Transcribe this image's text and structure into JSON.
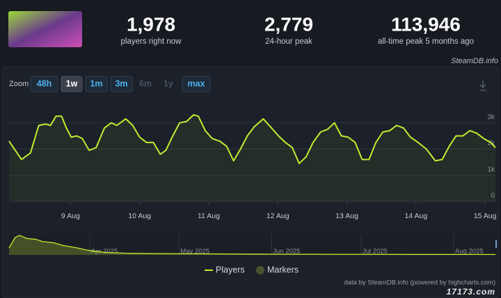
{
  "stats": [
    {
      "value": "1,978",
      "label": "players right now"
    },
    {
      "value": "2,779",
      "label": "24-hour peak"
    },
    {
      "value": "113,946",
      "label": "all-time peak 5 months ago"
    }
  ],
  "brand": "SteamDB.info",
  "zoom": {
    "label": "Zoom",
    "options": [
      "48h",
      "1w",
      "1m",
      "3m",
      "6m",
      "1y",
      "max"
    ],
    "selected": "1w",
    "disabled": [
      "6m",
      "1y"
    ]
  },
  "credit": "data by SteamDB.info (powered by highcharts.com)",
  "watermark": "17173.com",
  "chart_data": [
    {
      "type": "line",
      "x": [
        8.11,
        8.29,
        8.42,
        8.54,
        8.64,
        8.71,
        8.79,
        8.87,
        8.94,
        9.01,
        9.09,
        9.17,
        9.27,
        9.37,
        9.49,
        9.59,
        9.67,
        9.8,
        9.9,
        10.0,
        10.1,
        10.2,
        10.3,
        10.38,
        10.48,
        10.58,
        10.68,
        10.78,
        10.85,
        10.95,
        11.05,
        11.16,
        11.26,
        11.36,
        11.46,
        11.56,
        11.66,
        11.79,
        11.91,
        12.01,
        12.11,
        12.21,
        12.31,
        12.41,
        12.51,
        12.62,
        12.72,
        12.82,
        12.92,
        13.02,
        13.12,
        13.22,
        13.32,
        13.42,
        13.52,
        13.62,
        13.72,
        13.82,
        13.92,
        14.03,
        14.15,
        14.28,
        14.38,
        14.48,
        14.58,
        14.68,
        14.78,
        14.88,
        14.98,
        15.08,
        15.15
      ],
      "series": [
        {
          "name": "Players",
          "color": "#c3ec2e",
          "values": [
            2300,
            1600,
            1850,
            2900,
            2950,
            2900,
            3250,
            3250,
            2800,
            2450,
            2500,
            2400,
            1950,
            2050,
            2800,
            3000,
            2900,
            3150,
            2900,
            2450,
            2250,
            2250,
            1800,
            1950,
            2500,
            3000,
            3050,
            3300,
            3250,
            2700,
            2400,
            2300,
            2100,
            1550,
            2000,
            2500,
            2850,
            3150,
            2800,
            2500,
            2250,
            2050,
            1450,
            1700,
            2250,
            2650,
            2750,
            3000,
            2500,
            2450,
            2250,
            1600,
            1600,
            2250,
            2650,
            2700,
            2900,
            2800,
            2450,
            2250,
            2000,
            1550,
            1600,
            2100,
            2500,
            2500,
            2700,
            2600,
            2400,
            2250,
            2050
          ]
        }
      ],
      "marker_legend": "Markers",
      "xlim": [
        8.11,
        15.15
      ],
      "xticks": [
        {
          "value": 9,
          "label": "9 Aug"
        },
        {
          "value": 10,
          "label": "10 Aug"
        },
        {
          "value": 11,
          "label": "11 Aug"
        },
        {
          "value": 12,
          "label": "12 Aug"
        },
        {
          "value": 13,
          "label": "13 Aug"
        },
        {
          "value": 14,
          "label": "14 Aug"
        },
        {
          "value": 15,
          "label": "15 Aug"
        }
      ],
      "ylim": [
        0,
        4000
      ],
      "yticks": [
        0,
        {
          "value": 1000,
          "label": "1k"
        },
        {
          "value": 2000,
          "label": "2k"
        },
        {
          "value": 3000,
          "label": "3k"
        }
      ],
      "grid": true
    },
    {
      "type": "area",
      "color": "#c3ec2e",
      "x": [
        64,
        66,
        67.5,
        70,
        73,
        75,
        79,
        82,
        87,
        90,
        96,
        103,
        112,
        131,
        154,
        177,
        201,
        227
      ],
      "values": [
        40000,
        100000,
        113000,
        95000,
        90000,
        78000,
        70000,
        55000,
        40000,
        28000,
        15000,
        10000,
        8000,
        6000,
        4000,
        3500,
        3000,
        2500
      ],
      "xlim": [
        64,
        227
      ],
      "ylim": [
        0,
        120000
      ],
      "xticks": [
        {
          "value": 91,
          "label": "Apr 2025"
        },
        {
          "value": 121,
          "label": "May 2025"
        },
        {
          "value": 152,
          "label": "Jun 2025"
        },
        {
          "value": 182,
          "label": "Jul 2025"
        },
        {
          "value": 213,
          "label": "Aug 2025"
        }
      ]
    }
  ]
}
